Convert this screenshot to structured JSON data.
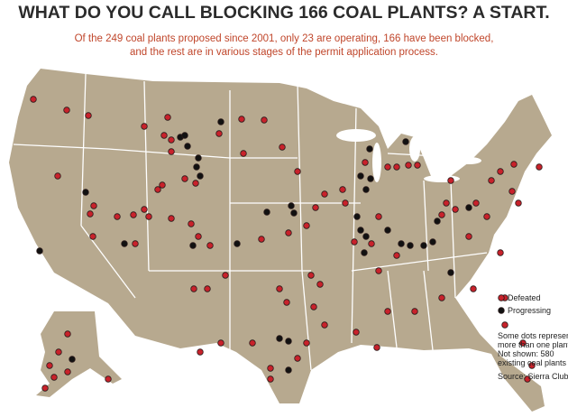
{
  "header": {
    "title": "WHAT DO YOU CALL BLOCKING 166 COAL PLANTS? A START.",
    "subtitle": [
      "Of the 249 coal plants proposed since 2001, only 23 are operating, 166 have been blocked,",
      "and the rest are in various stages of the permit application process."
    ]
  },
  "legend": [
    {
      "label": "Defeated",
      "color": "#c8222b"
    },
    {
      "label": "Progressing",
      "color": "#111111"
    }
  ],
  "notes": [
    "Some dots represent",
    "more than one plant.",
    "Not shown: 580",
    "existing coal plants"
  ],
  "source": "Source: Sierra Club"
}
